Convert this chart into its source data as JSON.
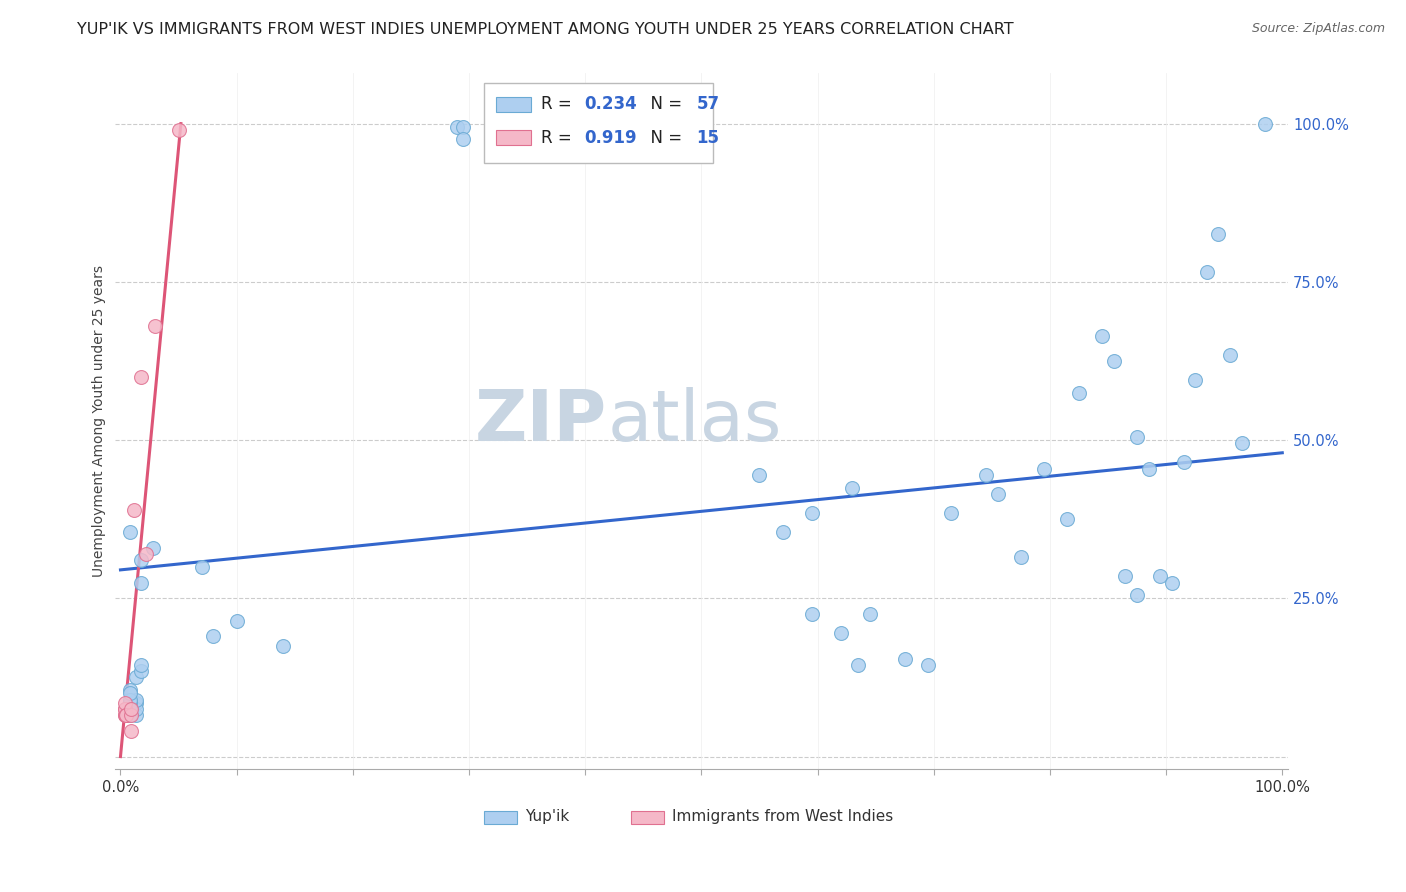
{
  "title": "YUP'IK VS IMMIGRANTS FROM WEST INDIES UNEMPLOYMENT AMONG YOUTH UNDER 25 YEARS CORRELATION CHART",
  "source": "Source: ZipAtlas.com",
  "ylabel": "Unemployment Among Youth under 25 years",
  "watermark_zip": "ZIP",
  "watermark_atlas": "atlas",
  "blue_color": "#aecff0",
  "blue_edge_color": "#6aaad4",
  "pink_color": "#f5b8c8",
  "pink_edge_color": "#e07090",
  "blue_line_color": "#3366cc",
  "pink_line_color": "#dd5577",
  "blue_scatter": [
    [
      0.008,
      0.355
    ],
    [
      0.008,
      0.105
    ],
    [
      0.018,
      0.31
    ],
    [
      0.018,
      0.275
    ],
    [
      0.013,
      0.085
    ],
    [
      0.013,
      0.125
    ],
    [
      0.013,
      0.065
    ],
    [
      0.013,
      0.075
    ],
    [
      0.013,
      0.09
    ],
    [
      0.018,
      0.135
    ],
    [
      0.018,
      0.145
    ],
    [
      0.008,
      0.065
    ],
    [
      0.008,
      0.085
    ],
    [
      0.008,
      0.09
    ],
    [
      0.008,
      0.1
    ],
    [
      0.008,
      0.075
    ],
    [
      0.028,
      0.33
    ],
    [
      0.07,
      0.3
    ],
    [
      0.08,
      0.19
    ],
    [
      0.1,
      0.215
    ],
    [
      0.14,
      0.175
    ],
    [
      0.29,
      0.995
    ],
    [
      0.295,
      0.995
    ],
    [
      0.295,
      0.975
    ],
    [
      0.335,
      0.995
    ],
    [
      0.55,
      0.445
    ],
    [
      0.57,
      0.355
    ],
    [
      0.595,
      0.385
    ],
    [
      0.595,
      0.225
    ],
    [
      0.62,
      0.195
    ],
    [
      0.63,
      0.425
    ],
    [
      0.635,
      0.145
    ],
    [
      0.645,
      0.225
    ],
    [
      0.675,
      0.155
    ],
    [
      0.695,
      0.145
    ],
    [
      0.715,
      0.385
    ],
    [
      0.745,
      0.445
    ],
    [
      0.755,
      0.415
    ],
    [
      0.775,
      0.315
    ],
    [
      0.795,
      0.455
    ],
    [
      0.815,
      0.375
    ],
    [
      0.825,
      0.575
    ],
    [
      0.845,
      0.665
    ],
    [
      0.855,
      0.625
    ],
    [
      0.865,
      0.285
    ],
    [
      0.875,
      0.255
    ],
    [
      0.875,
      0.505
    ],
    [
      0.885,
      0.455
    ],
    [
      0.895,
      0.285
    ],
    [
      0.905,
      0.275
    ],
    [
      0.915,
      0.465
    ],
    [
      0.925,
      0.595
    ],
    [
      0.935,
      0.765
    ],
    [
      0.945,
      0.825
    ],
    [
      0.955,
      0.635
    ],
    [
      0.965,
      0.495
    ],
    [
      0.985,
      1.0
    ]
  ],
  "pink_scatter": [
    [
      0.004,
      0.065
    ],
    [
      0.004,
      0.075
    ],
    [
      0.004,
      0.065
    ],
    [
      0.004,
      0.075
    ],
    [
      0.004,
      0.085
    ],
    [
      0.005,
      0.065
    ],
    [
      0.005,
      0.065
    ],
    [
      0.009,
      0.065
    ],
    [
      0.009,
      0.075
    ],
    [
      0.012,
      0.39
    ],
    [
      0.009,
      0.04
    ],
    [
      0.018,
      0.6
    ],
    [
      0.022,
      0.32
    ],
    [
      0.03,
      0.68
    ],
    [
      0.05,
      0.99
    ]
  ],
  "blue_line_x": [
    0.0,
    1.0
  ],
  "blue_line_y": [
    0.295,
    0.48
  ],
  "pink_line_x": [
    0.0,
    0.052
  ],
  "pink_line_y": [
    0.0,
    1.0
  ],
  "xlim": [
    -0.005,
    1.005
  ],
  "ylim": [
    -0.02,
    1.08
  ],
  "yticks": [
    0.0,
    0.25,
    0.5,
    0.75,
    1.0
  ],
  "ytick_labels": [
    "",
    "25.0%",
    "50.0%",
    "75.0%",
    "100.0%"
  ],
  "xtick_positions": [
    0.0,
    0.1,
    0.2,
    0.3,
    0.4,
    0.5,
    0.6,
    0.7,
    0.8,
    0.9,
    1.0
  ],
  "xtick_labels": [
    "0.0%",
    "",
    "",
    "",
    "",
    "",
    "",
    "",
    "",
    "",
    "100.0%"
  ],
  "grid_color": "#cccccc",
  "background_color": "#ffffff",
  "title_fontsize": 11.5,
  "scatter_size": 100,
  "watermark_color_zip": "#c8d8e8",
  "watermark_color_atlas": "#c8d8e8"
}
